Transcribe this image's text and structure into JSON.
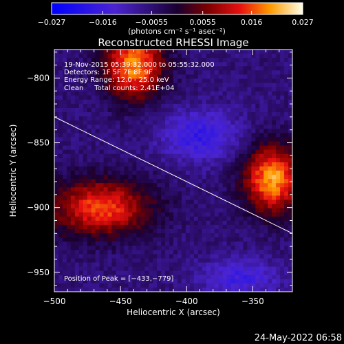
{
  "chart_data": {
    "type": "heatmap",
    "title": "Reconstructed RHESSI Image",
    "xlabel": "Heliocentric X (arcsec)",
    "ylabel": "Heliocentric Y (arcsec)",
    "xlim": [
      -500,
      -320
    ],
    "ylim": [
      -965,
      -778
    ],
    "xticks": [
      -500,
      -450,
      -400,
      -350
    ],
    "xtick_labels": [
      "−500",
      "−450",
      "−400",
      "−350"
    ],
    "yticks": [
      -800,
      -850,
      -900,
      -950
    ],
    "ytick_labels": [
      "−800",
      "−850",
      "−900",
      "−950"
    ],
    "colorbar": {
      "min": -0.027,
      "max": 0.027,
      "ticks": [
        -0.027,
        -0.016,
        -0.0055,
        0.0055,
        0.016,
        0.027
      ],
      "tick_labels": [
        "−0.027",
        "−0.016",
        "−0.0055",
        "0.0055",
        "0.016",
        "0.027"
      ],
      "label": "(photons cm⁻² s⁻¹ asec⁻²)"
    },
    "annotations": [
      "19-Nov-2015 05:39:32.000 to 05:55:32.000",
      "Detectors: 1F 5F 7F 8F 9F",
      "Energy Range: 12.0 - 25.0 keV",
      "Clean     Total counts: 2.41E+04"
    ],
    "peak_label": "Position of Peak = [−433,−779]",
    "limb_line": {
      "x": [
        -500,
        -320
      ],
      "y": [
        -830,
        -920
      ]
    },
    "sources": [
      {
        "x": -440,
        "y": -790,
        "amp": 0.026
      },
      {
        "x": -465,
        "y": -900,
        "amp": 0.022
      },
      {
        "x": -335,
        "y": -878,
        "amp": 0.027
      }
    ]
  },
  "footer": {
    "date": "24-May-2022 06:58"
  },
  "colors": {
    "background": "#000000",
    "limb": "#ffffff",
    "text": "#ffffff"
  }
}
